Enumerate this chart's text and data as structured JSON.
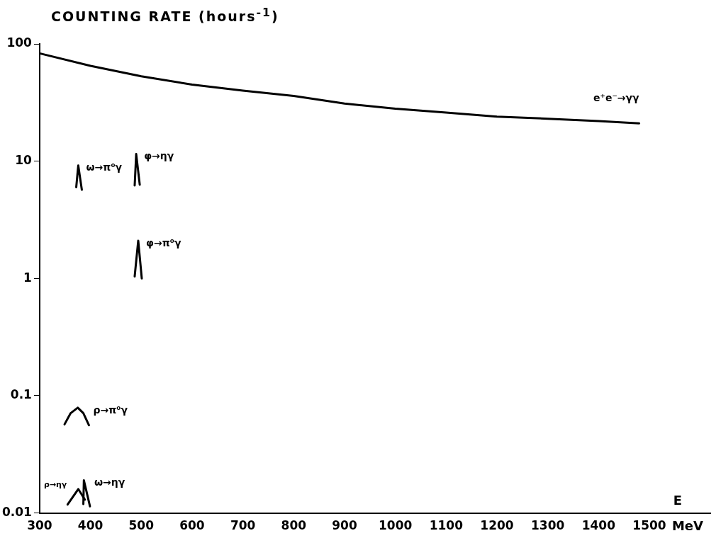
{
  "chart_data": {
    "type": "line",
    "ylabel": "COUNTING RATE (hours$^{-1}$)",
    "xlabel": "E",
    "annotations": [
      "MeV"
    ],
    "xlim": [
      300,
      1620
    ],
    "xticks": [
      300,
      400,
      500,
      600,
      700,
      800,
      900,
      1000,
      1100,
      1200,
      1300,
      1400,
      1500
    ],
    "ylim": [
      0.01,
      100
    ],
    "yticks": [
      0.01,
      0.1,
      1,
      10,
      100
    ],
    "log": "y",
    "grid": false,
    "legend": false,
    "marker": "none",
    "line_style": "solid",
    "series": [
      {
        "name": "e⁺e⁻→γγ",
        "color": "#000000",
        "x": [
          300,
          400,
          500,
          600,
          700,
          800,
          900,
          1000,
          1100,
          1200,
          1300,
          1400,
          1480
        ],
        "values": [
          83,
          65,
          53,
          45,
          40,
          36,
          31,
          28,
          26,
          24,
          23,
          22,
          21
        ]
      },
      {
        "name": "ω→π⁰γ",
        "color": "#000000",
        "x": [
          372,
          376,
          383
        ],
        "values": [
          6.0,
          9.2,
          5.7
        ]
      },
      {
        "name": "φ→ηγ",
        "color": "#000000",
        "x": [
          487,
          490,
          497
        ],
        "values": [
          6.2,
          11.5,
          6.3
        ]
      },
      {
        "name": "φ→π⁰γ",
        "color": "#000000",
        "x": [
          487,
          494,
          501
        ],
        "values": [
          1.04,
          2.1,
          1.0
        ]
      },
      {
        "name": "ρ→π⁰γ",
        "color": "#000000",
        "x": [
          349,
          361,
          375,
          386,
          397
        ],
        "values": [
          0.057,
          0.071,
          0.079,
          0.071,
          0.056
        ]
      },
      {
        "name": "ρ→ηγ",
        "color": "#000000",
        "x": [
          355,
          376,
          389
        ],
        "values": [
          0.0118,
          0.016,
          0.013
        ]
      },
      {
        "name": "ω→ηγ",
        "color": "#000000",
        "x": [
          386,
          387,
          399
        ],
        "values": [
          0.0119,
          0.019,
          0.0114
        ]
      }
    ]
  }
}
